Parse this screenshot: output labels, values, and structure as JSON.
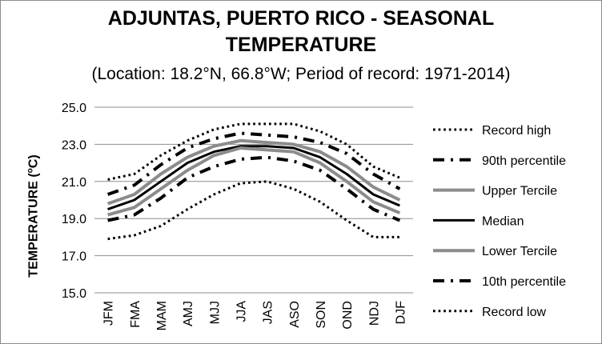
{
  "chart_data": {
    "type": "line",
    "title": "ADJUNTAS, PUERTO RICO - SEASONAL TEMPERATURE",
    "title_lines": [
      "ADJUNTAS, PUERTO RICO - SEASONAL",
      "TEMPERATURE"
    ],
    "subtitle": "(Location: 18.2°N, 66.8°W; Period of record: 1971-2014)",
    "ylabel": "TEMPERATURE",
    "ylabel_unit": "C",
    "ylim": [
      15.0,
      25.0
    ],
    "yticks": [
      "25.0",
      "23.0",
      "21.0",
      "19.0",
      "17.0",
      "15.0"
    ],
    "grid": "horizontal",
    "legend_position": "right",
    "categories": [
      "JFM",
      "FMA",
      "MAM",
      "AMJ",
      "MJJ",
      "JJA",
      "JAS",
      "ASO",
      "SON",
      "OND",
      "NDJ",
      "DJF"
    ],
    "series": [
      {
        "name": "Record high",
        "style": "dotted",
        "color": "#000000",
        "width": 3,
        "values": [
          21.1,
          21.4,
          22.4,
          23.2,
          23.8,
          24.1,
          24.1,
          24.1,
          23.7,
          23.0,
          21.8,
          21.2
        ]
      },
      {
        "name": "90th percentile",
        "style": "dashdot",
        "color": "#000000",
        "width": 4,
        "values": [
          20.3,
          20.8,
          21.9,
          22.8,
          23.3,
          23.6,
          23.5,
          23.4,
          23.1,
          22.5,
          21.4,
          20.6
        ]
      },
      {
        "name": "Upper Tercile",
        "style": "solid",
        "color": "#8c8c8c",
        "width": 4,
        "values": [
          19.8,
          20.3,
          21.4,
          22.3,
          22.9,
          23.2,
          23.1,
          23.0,
          22.6,
          21.8,
          20.7,
          20.0
        ]
      },
      {
        "name": "Median",
        "style": "solid",
        "color": "#000000",
        "width": 3,
        "values": [
          19.5,
          20.0,
          21.0,
          22.0,
          22.6,
          22.9,
          22.9,
          22.8,
          22.3,
          21.4,
          20.3,
          19.7
        ]
      },
      {
        "name": "Lower Tercile",
        "style": "solid",
        "color": "#8c8c8c",
        "width": 4,
        "values": [
          19.2,
          19.6,
          20.6,
          21.6,
          22.4,
          22.8,
          22.7,
          22.6,
          22.0,
          21.0,
          19.9,
          19.3
        ]
      },
      {
        "name": "10th percentile",
        "style": "dashdot",
        "color": "#000000",
        "width": 4,
        "values": [
          18.9,
          19.2,
          20.1,
          21.2,
          21.8,
          22.2,
          22.3,
          22.1,
          21.6,
          20.6,
          19.5,
          18.9
        ]
      },
      {
        "name": "Record low",
        "style": "dotted",
        "color": "#000000",
        "width": 3,
        "values": [
          17.9,
          18.1,
          18.6,
          19.5,
          20.3,
          20.9,
          21.0,
          20.6,
          19.9,
          18.9,
          18.0,
          18.0
        ]
      }
    ]
  }
}
